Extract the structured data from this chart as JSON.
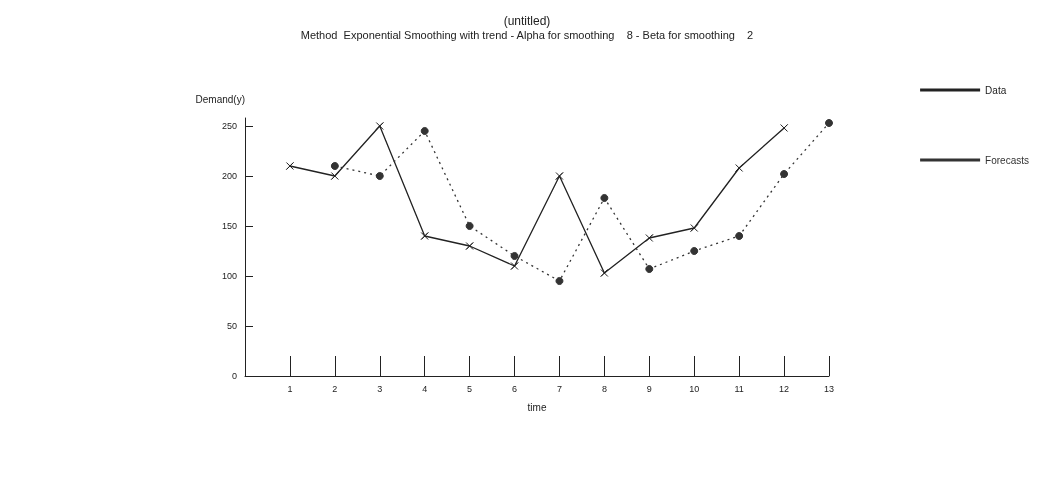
{
  "chart_data": {
    "type": "line",
    "title": "(untitled)",
    "subtitle": "Method  Exponential Smoothing with trend - Alpha for smoothing    8 - Beta for smoothing    2",
    "xlabel": "time",
    "ylabel": "Demand(y)",
    "series": [
      {
        "name": "Data",
        "color": "#222222",
        "marker": "cross",
        "line_style": "solid",
        "x": [
          1,
          2,
          3,
          4,
          5,
          6,
          7,
          8,
          9,
          10,
          11,
          12
        ],
        "values": [
          210,
          200,
          250,
          140,
          130,
          110,
          200,
          103,
          138,
          148,
          208,
          248
        ]
      },
      {
        "name": "Forecasts",
        "color": "#333333",
        "marker": "circle",
        "line_style": "dotted",
        "x": [
          2,
          3,
          4,
          5,
          6,
          7,
          8,
          9,
          10,
          11,
          12,
          13
        ],
        "values": [
          210,
          200,
          245,
          150,
          120,
          95,
          178,
          107,
          125,
          140,
          202,
          253
        ]
      }
    ],
    "xlim": [
      0,
      13
    ],
    "xticks": [
      1,
      2,
      3,
      4,
      5,
      6,
      7,
      8,
      9,
      10,
      11,
      12,
      13
    ],
    "ylim": [
      0,
      258
    ],
    "yticks": [
      0,
      50,
      100,
      150,
      200,
      250
    ],
    "grid": false,
    "legend": "right"
  }
}
